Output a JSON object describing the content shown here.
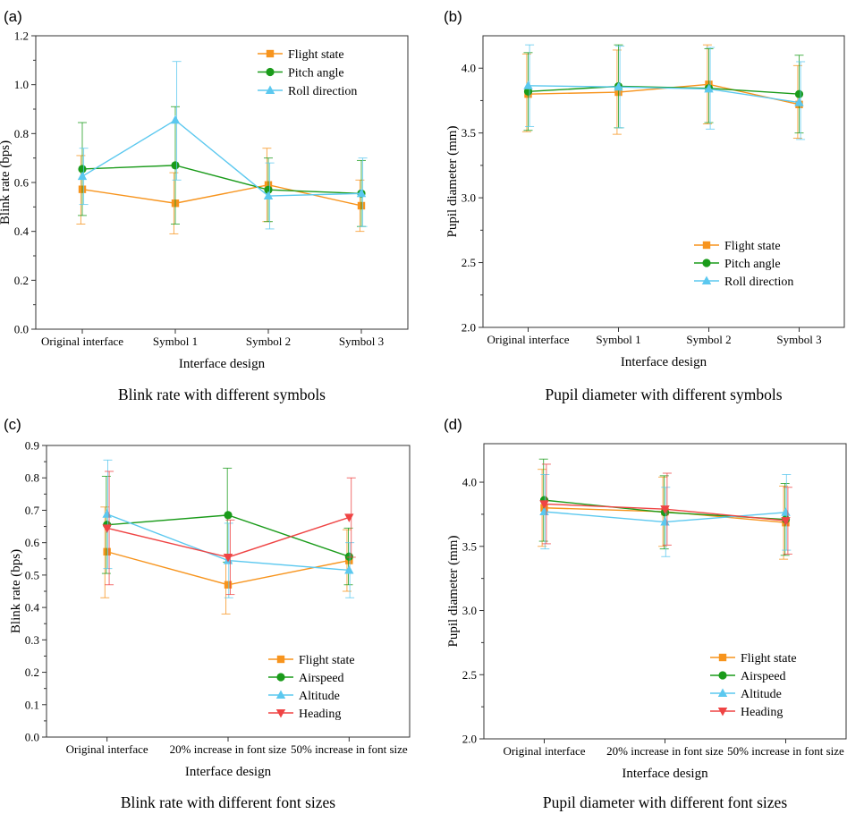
{
  "chart_data": [
    {
      "panel": "(a)",
      "type": "line",
      "caption": "Blink rate with different symbols",
      "xlabel": "Interface design",
      "ylabel": "Blink rate (bps)",
      "categories": [
        "Original interface",
        "Symbol 1",
        "Symbol 2",
        "Symbol 3"
      ],
      "ylim": [
        0.0,
        1.2
      ],
      "yticks": [
        0.0,
        0.2,
        0.4,
        0.6,
        0.8,
        1.0,
        1.2
      ],
      "ytick_labels": [
        "0.0",
        "0.2",
        "0.4",
        "0.6",
        "0.8",
        "1.0",
        "1.2"
      ],
      "legend_position": "top-right",
      "series": [
        {
          "name": "Flight state",
          "color": "#f7941d",
          "marker": "square",
          "values": [
            0.572,
            0.515,
            0.59,
            0.505
          ],
          "err_low": [
            0.43,
            0.39,
            0.44,
            0.4
          ],
          "err_high": [
            0.71,
            0.64,
            0.74,
            0.61
          ]
        },
        {
          "name": "Pitch angle",
          "color": "#1a9b1a",
          "marker": "circle",
          "values": [
            0.655,
            0.67,
            0.57,
            0.555
          ],
          "err_low": [
            0.465,
            0.43,
            0.44,
            0.42
          ],
          "err_high": [
            0.845,
            0.91,
            0.7,
            0.69
          ]
        },
        {
          "name": "Roll direction",
          "color": "#5bc8ef",
          "marker": "triangle-up",
          "values": [
            0.625,
            0.855,
            0.545,
            0.555
          ],
          "err_low": [
            0.51,
            0.61,
            0.41,
            0.42
          ],
          "err_high": [
            0.74,
            1.095,
            0.68,
            0.7
          ]
        }
      ]
    },
    {
      "panel": "(b)",
      "type": "line",
      "caption": "Pupil diameter with different symbols",
      "xlabel": "Interface design",
      "ylabel": "Pupil diameter (mm)",
      "categories": [
        "Original interface",
        "Symbol 1",
        "Symbol 2",
        "Symbol 3"
      ],
      "ylim": [
        2.0,
        4.25
      ],
      "yticks": [
        2.0,
        2.5,
        3.0,
        3.5,
        4.0
      ],
      "ytick_labels": [
        "2.0",
        "2.5",
        "3.0",
        "3.5",
        "4.0"
      ],
      "legend_position": "bottom-right",
      "series": [
        {
          "name": "Flight state",
          "color": "#f7941d",
          "marker": "square",
          "values": [
            3.8,
            3.815,
            3.875,
            3.72
          ],
          "err_low": [
            3.51,
            3.49,
            3.57,
            3.46
          ],
          "err_high": [
            4.11,
            4.14,
            4.18,
            4.02
          ]
        },
        {
          "name": "Pitch angle",
          "color": "#1a9b1a",
          "marker": "circle",
          "values": [
            3.82,
            3.86,
            3.845,
            3.8
          ],
          "err_low": [
            3.52,
            3.54,
            3.58,
            3.5
          ],
          "err_high": [
            4.12,
            4.18,
            4.15,
            4.1
          ]
        },
        {
          "name": "Roll direction",
          "color": "#5bc8ef",
          "marker": "triangle-up",
          "values": [
            3.865,
            3.855,
            3.84,
            3.735
          ],
          "err_low": [
            3.55,
            3.54,
            3.53,
            3.45
          ],
          "err_high": [
            4.18,
            4.17,
            4.16,
            4.05
          ]
        }
      ]
    },
    {
      "panel": "(c)",
      "type": "line",
      "caption": "Blink rate with different font sizes",
      "xlabel": "Interface design",
      "ylabel": "Blink rate (bps)",
      "categories": [
        "Original interface",
        "20% increase in font size",
        "50% increase in font size"
      ],
      "ylim": [
        0.0,
        0.9
      ],
      "yticks": [
        0.0,
        0.1,
        0.2,
        0.3,
        0.4,
        0.5,
        0.6,
        0.7,
        0.8,
        0.9
      ],
      "ytick_labels": [
        "0.0",
        "0.1",
        "0.2",
        "0.3",
        "0.4",
        "0.5",
        "0.6",
        "0.7",
        "0.8",
        "0.9"
      ],
      "legend_position": "bottom-right",
      "series": [
        {
          "name": "Flight state",
          "color": "#f7941d",
          "marker": "square",
          "values": [
            0.572,
            0.47,
            0.545
          ],
          "err_low": [
            0.43,
            0.38,
            0.45
          ],
          "err_high": [
            0.71,
            0.56,
            0.64
          ]
        },
        {
          "name": "Airspeed",
          "color": "#1a9b1a",
          "marker": "circle",
          "values": [
            0.655,
            0.685,
            0.557
          ],
          "err_low": [
            0.505,
            0.54,
            0.47
          ],
          "err_high": [
            0.805,
            0.83,
            0.645
          ]
        },
        {
          "name": "Altitude",
          "color": "#5bc8ef",
          "marker": "triangle-up",
          "values": [
            0.688,
            0.545,
            0.515
          ],
          "err_low": [
            0.52,
            0.43,
            0.43
          ],
          "err_high": [
            0.855,
            0.66,
            0.6
          ]
        },
        {
          "name": "Heading",
          "color": "#ef4444",
          "marker": "triangle-down",
          "values": [
            0.645,
            0.555,
            0.678
          ],
          "err_low": [
            0.47,
            0.44,
            0.555
          ],
          "err_high": [
            0.82,
            0.67,
            0.8
          ]
        }
      ]
    },
    {
      "panel": "(d)",
      "type": "line",
      "caption": "Pupil diameter with different font sizes",
      "xlabel": "Interface design",
      "ylabel": "Pupil diameter (mm)",
      "categories": [
        "Original interface",
        "20% increase in font size",
        "50% increase in font size"
      ],
      "ylim": [
        2.0,
        4.3
      ],
      "yticks": [
        2.0,
        2.5,
        3.0,
        3.5,
        4.0
      ],
      "ytick_labels": [
        "2.0",
        "2.5",
        "3.0",
        "3.5",
        "4.0"
      ],
      "legend_position": "bottom-right",
      "series": [
        {
          "name": "Flight state",
          "color": "#f7941d",
          "marker": "square",
          "values": [
            3.8,
            3.77,
            3.685
          ],
          "err_low": [
            3.5,
            3.5,
            3.4
          ],
          "err_high": [
            4.1,
            4.04,
            3.97
          ]
        },
        {
          "name": "Airspeed",
          "color": "#1a9b1a",
          "marker": "circle",
          "values": [
            3.86,
            3.765,
            3.71
          ],
          "err_low": [
            3.54,
            3.48,
            3.43
          ],
          "err_high": [
            4.18,
            4.05,
            3.99
          ]
        },
        {
          "name": "Altitude",
          "color": "#5bc8ef",
          "marker": "triangle-up",
          "values": [
            3.77,
            3.69,
            3.765
          ],
          "err_low": [
            3.48,
            3.42,
            3.47
          ],
          "err_high": [
            4.06,
            3.96,
            4.06
          ]
        },
        {
          "name": "Heading",
          "color": "#ef4444",
          "marker": "triangle-down",
          "values": [
            3.83,
            3.79,
            3.7
          ],
          "err_low": [
            3.52,
            3.51,
            3.44
          ],
          "err_high": [
            4.14,
            4.07,
            3.96
          ]
        }
      ]
    }
  ]
}
